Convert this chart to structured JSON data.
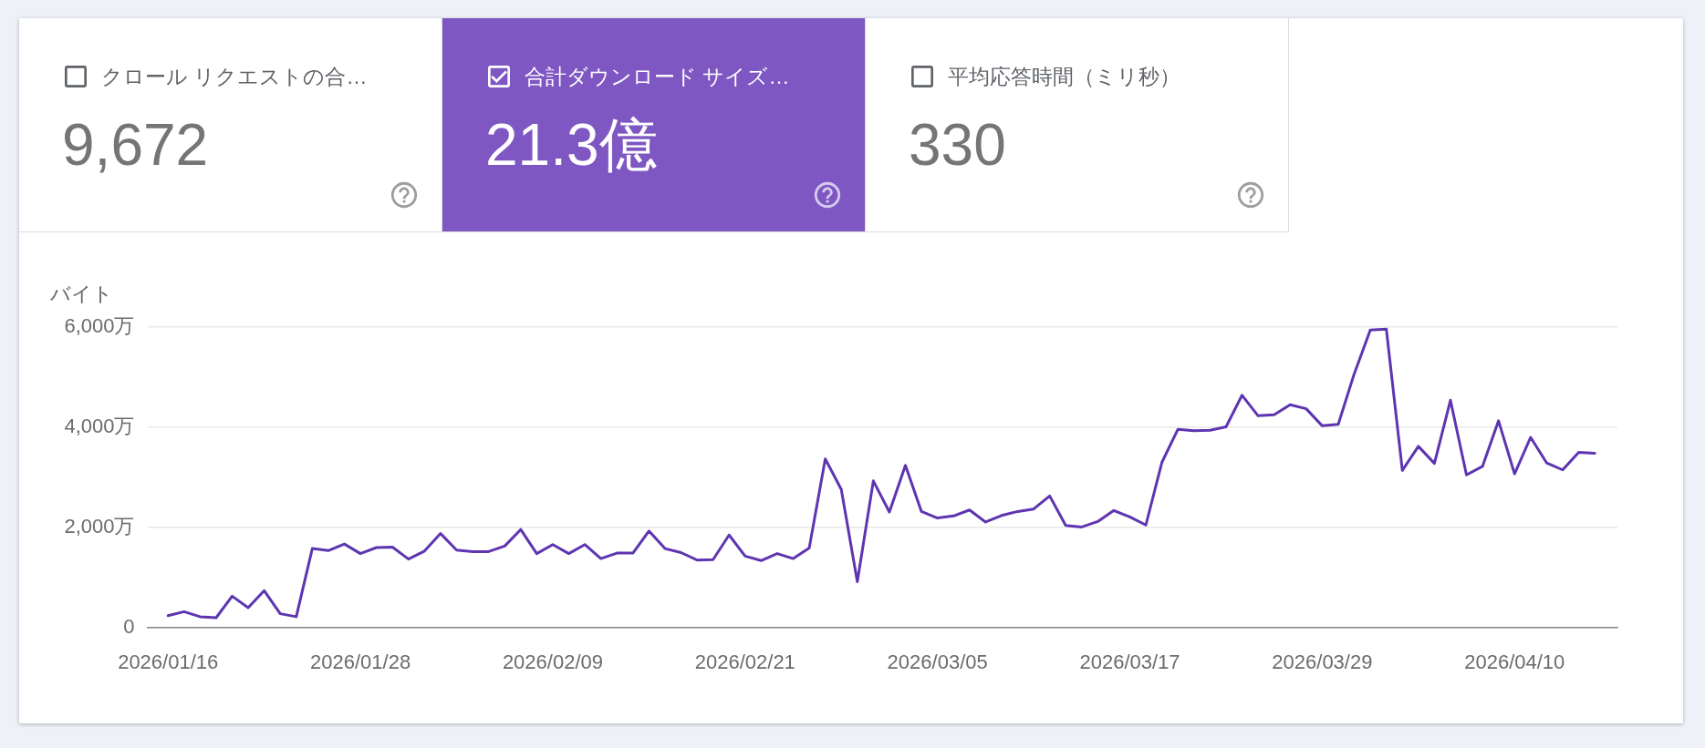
{
  "chart_data": [
    {
      "type": "other",
      "title": "クロール リクエストの合…",
      "annotations": [
        "9,672"
      ]
    },
    {
      "type": "other",
      "title": "合計ダウンロード サイズ…",
      "annotations": [
        "21.3億"
      ],
      "color": "#7e57c2"
    },
    {
      "type": "other",
      "title": "平均応答時間（ミリ秒）",
      "annotations": [
        "330"
      ]
    },
    {
      "type": "line",
      "ylabel": "バイト",
      "x": [
        "2026-01-16",
        "2026-01-17",
        "2026-01-18",
        "2026-01-19",
        "2026-01-20",
        "2026-01-21",
        "2026-01-22",
        "2026-01-23",
        "2026-01-24",
        "2026-01-25",
        "2026-01-26",
        "2026-01-27",
        "2026-01-28",
        "2026-01-29",
        "2026-01-30",
        "2026-01-31",
        "2026-02-01",
        "2026-02-02",
        "2026-02-03",
        "2026-02-04",
        "2026-02-05",
        "2026-02-06",
        "2026-02-07",
        "2026-02-08",
        "2026-02-09",
        "2026-02-10",
        "2026-02-11",
        "2026-02-12",
        "2026-02-13",
        "2026-02-14",
        "2026-02-15",
        "2026-02-16",
        "2026-02-17",
        "2026-02-18",
        "2026-02-19",
        "2026-02-20",
        "2026-02-21",
        "2026-02-22",
        "2026-02-23",
        "2026-02-24",
        "2026-02-25",
        "2026-02-26",
        "2026-02-27",
        "2026-02-28",
        "2026-03-01",
        "2026-03-02",
        "2026-03-03",
        "2026-03-04",
        "2026-03-05",
        "2026-03-06",
        "2026-03-07",
        "2026-03-08",
        "2026-03-09",
        "2026-03-10",
        "2026-03-11",
        "2026-03-12",
        "2026-03-13",
        "2026-03-14",
        "2026-03-15",
        "2026-03-16",
        "2026-03-17",
        "2026-03-18",
        "2026-03-19",
        "2026-03-20",
        "2026-03-21",
        "2026-03-22",
        "2026-03-23",
        "2026-03-24",
        "2026-03-25",
        "2026-03-26",
        "2026-03-27",
        "2026-03-28",
        "2026-03-29",
        "2026-03-30",
        "2026-03-31",
        "2026-04-01",
        "2026-04-02",
        "2026-04-03",
        "2026-04-04",
        "2026-04-05",
        "2026-04-06",
        "2026-04-07",
        "2026-04-08",
        "2026-04-09",
        "2026-04-10",
        "2026-04-11",
        "2026-04-12",
        "2026-04-13",
        "2026-04-14",
        "2026-04-15"
      ],
      "series": [
        {
          "color": "#5e35b1",
          "values": [
            240,
            320,
            220,
            200,
            630,
            400,
            740,
            280,
            220,
            1580,
            1540,
            1670,
            1480,
            1600,
            1610,
            1370,
            1530,
            1880,
            1550,
            1520,
            1520,
            1630,
            1960,
            1480,
            1660,
            1480,
            1660,
            1380,
            1490,
            1490,
            1930,
            1580,
            1500,
            1350,
            1360,
            1850,
            1430,
            1340,
            1480,
            1380,
            1590,
            3370,
            2760,
            920,
            2930,
            2310,
            3240,
            2320,
            2190,
            2230,
            2350,
            2110,
            2240,
            2320,
            2370,
            2630,
            2040,
            2010,
            2120,
            2340,
            2210,
            2050,
            3300,
            3960,
            3930,
            3940,
            4010,
            4640,
            4230,
            4250,
            4450,
            4370,
            4030,
            4060,
            5070,
            5940,
            5960,
            3140,
            3620,
            3280,
            4540,
            3050,
            3220,
            4130,
            3070,
            3800,
            3290,
            3150,
            3500,
            3480
          ]
        }
      ],
      "xlim": [
        "2026-01-14T17:00",
        "2026-04-16T10:00"
      ],
      "xticks": [
        {
          "value": "2026-01-16",
          "label": "2026/01/16"
        },
        {
          "value": "2026-01-28",
          "label": "2026/01/28"
        },
        {
          "value": "2026-02-09",
          "label": "2026/02/09"
        },
        {
          "value": "2026-02-21",
          "label": "2026/02/21"
        },
        {
          "value": "2026-03-05",
          "label": "2026/03/05"
        },
        {
          "value": "2026-03-17",
          "label": "2026/03/17"
        },
        {
          "value": "2026-03-29",
          "label": "2026/03/29"
        },
        {
          "value": "2026-04-10",
          "label": "2026/04/10"
        }
      ],
      "ylim": [
        0,
        6000
      ],
      "yticks": [
        0,
        {
          "value": 2000,
          "label": "2,000万"
        },
        {
          "value": 4000,
          "label": "4,000万"
        },
        {
          "value": 6000,
          "label": "6,000万"
        }
      ],
      "grid": "y"
    }
  ]
}
